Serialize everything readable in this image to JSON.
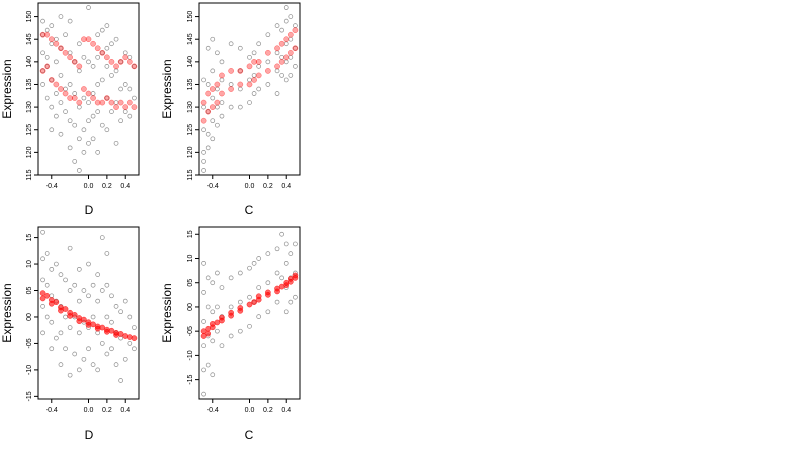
{
  "colors": {
    "background": "#ffffff",
    "observed_points": "#000000",
    "fitted_points": "#ff0000",
    "axis": "#000000"
  },
  "chart_data": [
    {
      "type": "scatter",
      "title": "",
      "xlabel": "D",
      "ylabel": "Expression",
      "xlim": [
        -0.55,
        0.55
      ],
      "ylim": [
        11.5,
        15.3
      ],
      "xticks": [
        -0.4,
        0.0,
        0.2,
        0.4
      ],
      "xtick_labels": [
        "-0.4",
        "0.0",
        "0.2",
        "0.4"
      ],
      "yticks": [
        11.5,
        12.0,
        12.5,
        13.0,
        13.5,
        14.0,
        14.5,
        15.0
      ],
      "ytick_labels": [
        "115",
        "120",
        "125",
        "130",
        "135",
        "140",
        "145",
        "150"
      ],
      "grid": false,
      "series": [
        {
          "role": "observed",
          "marker": "open-circle",
          "color": "#000000",
          "opacity": 0.45,
          "x": [
            -0.5,
            -0.5,
            -0.5,
            -0.5,
            -0.5,
            -0.45,
            -0.45,
            -0.45,
            -0.45,
            -0.4,
            -0.4,
            -0.4,
            -0.4,
            -0.4,
            -0.35,
            -0.35,
            -0.35,
            -0.35,
            -0.3,
            -0.3,
            -0.3,
            -0.3,
            -0.3,
            -0.25,
            -0.25,
            -0.25,
            -0.2,
            -0.2,
            -0.2,
            -0.2,
            -0.2,
            -0.15,
            -0.15,
            -0.15,
            -0.15,
            -0.1,
            -0.1,
            -0.1,
            -0.1,
            -0.1,
            -0.05,
            -0.05,
            -0.05,
            -0.05,
            0.0,
            0.0,
            0.0,
            0.0,
            0.0,
            0.05,
            0.05,
            0.05,
            0.05,
            0.1,
            0.1,
            0.1,
            0.1,
            0.1,
            0.15,
            0.15,
            0.15,
            0.15,
            0.2,
            0.2,
            0.2,
            0.2,
            0.2,
            0.25,
            0.25,
            0.25,
            0.3,
            0.3,
            0.3,
            0.3,
            0.35,
            0.35,
            0.35,
            0.4,
            0.4,
            0.4,
            0.45,
            0.45,
            0.45,
            0.5,
            0.5
          ],
          "y": [
            14.9,
            14.6,
            14.2,
            13.8,
            13.5,
            14.7,
            14.1,
            13.9,
            13.2,
            14.8,
            14.4,
            13.6,
            13.0,
            12.5,
            14.5,
            14.0,
            13.3,
            12.8,
            15.0,
            14.3,
            13.7,
            13.1,
            12.4,
            14.6,
            13.4,
            12.9,
            14.9,
            14.2,
            13.5,
            12.7,
            12.1,
            14.0,
            13.3,
            12.6,
            11.8,
            14.4,
            13.8,
            13.0,
            12.3,
            11.6,
            14.1,
            13.2,
            12.5,
            12.0,
            15.2,
            14.0,
            13.1,
            12.7,
            12.2,
            13.9,
            13.3,
            12.8,
            12.3,
            14.6,
            14.1,
            13.5,
            12.9,
            12.0,
            14.7,
            14.2,
            13.6,
            12.6,
            14.8,
            14.3,
            13.9,
            13.2,
            12.5,
            14.4,
            13.7,
            12.9,
            14.5,
            13.8,
            13.1,
            12.2,
            14.0,
            13.4,
            12.7,
            14.2,
            13.5,
            12.9,
            14.1,
            13.4,
            12.8,
            13.9,
            13.2
          ]
        },
        {
          "role": "fitted",
          "marker": "circle",
          "color": "#ff0000",
          "opacity": 0.35,
          "x": [
            -0.5,
            -0.5,
            -0.45,
            -0.45,
            -0.4,
            -0.4,
            -0.35,
            -0.35,
            -0.3,
            -0.3,
            -0.25,
            -0.25,
            -0.2,
            -0.2,
            -0.15,
            -0.15,
            -0.1,
            -0.1,
            -0.05,
            -0.05,
            0.0,
            0.0,
            0.05,
            0.05,
            0.1,
            0.1,
            0.15,
            0.15,
            0.2,
            0.2,
            0.25,
            0.25,
            0.3,
            0.3,
            0.35,
            0.35,
            0.4,
            0.4,
            0.45,
            0.45,
            0.5,
            0.5
          ],
          "y": [
            14.6,
            13.8,
            14.6,
            13.9,
            14.5,
            13.6,
            14.4,
            13.5,
            14.3,
            13.4,
            14.2,
            13.3,
            14.1,
            13.2,
            14.0,
            13.2,
            13.9,
            13.1,
            14.5,
            13.4,
            14.5,
            13.3,
            14.4,
            13.2,
            14.3,
            13.1,
            14.2,
            13.1,
            14.1,
            13.2,
            14.0,
            13.1,
            13.9,
            13.0,
            14.0,
            13.1,
            14.1,
            13.0,
            14.0,
            13.1,
            13.9,
            13.0
          ]
        }
      ]
    },
    {
      "type": "scatter",
      "title": "",
      "xlabel": "C",
      "ylabel": "Expression",
      "xlim": [
        -0.55,
        0.55
      ],
      "ylim": [
        11.5,
        15.3
      ],
      "xticks": [
        -0.4,
        0.0,
        0.2,
        0.4
      ],
      "xtick_labels": [
        "-0.4",
        "0.0",
        "0.2",
        "0.4"
      ],
      "yticks": [
        11.5,
        12.0,
        12.5,
        13.0,
        13.5,
        14.0,
        14.5,
        15.0
      ],
      "ytick_labels": [
        "115",
        "120",
        "125",
        "130",
        "135",
        "140",
        "145",
        "150"
      ],
      "grid": false,
      "series": [
        {
          "role": "observed",
          "marker": "open-circle",
          "color": "#000000",
          "opacity": 0.45,
          "x": [
            -0.5,
            -0.5,
            -0.5,
            -0.5,
            -0.5,
            -0.5,
            -0.45,
            -0.45,
            -0.45,
            -0.45,
            -0.45,
            -0.4,
            -0.4,
            -0.4,
            -0.4,
            -0.4,
            -0.35,
            -0.35,
            -0.35,
            -0.35,
            -0.3,
            -0.3,
            -0.3,
            -0.3,
            -0.2,
            -0.2,
            -0.2,
            -0.1,
            -0.1,
            -0.1,
            -0.1,
            0.0,
            0.0,
            0.0,
            0.05,
            0.05,
            0.05,
            0.1,
            0.1,
            0.1,
            0.2,
            0.2,
            0.2,
            0.3,
            0.3,
            0.3,
            0.3,
            0.35,
            0.35,
            0.35,
            0.4,
            0.4,
            0.4,
            0.4,
            0.4,
            0.45,
            0.45,
            0.45,
            0.45,
            0.5,
            0.5,
            0.5
          ],
          "y": [
            13.6,
            13.0,
            12.5,
            12.0,
            11.8,
            11.6,
            14.3,
            13.5,
            12.9,
            12.4,
            12.1,
            14.5,
            13.8,
            13.2,
            12.7,
            12.3,
            14.2,
            13.4,
            13.0,
            12.6,
            14.0,
            13.6,
            13.1,
            12.8,
            14.4,
            13.5,
            13.0,
            14.3,
            13.8,
            13.4,
            13.0,
            14.1,
            13.6,
            13.1,
            14.2,
            13.7,
            13.3,
            14.4,
            13.9,
            13.4,
            14.6,
            14.0,
            13.5,
            14.8,
            14.2,
            13.8,
            13.3,
            14.7,
            14.1,
            13.7,
            15.2,
            14.9,
            14.4,
            14.0,
            13.6,
            15.0,
            14.5,
            14.1,
            13.7,
            14.8,
            14.3,
            13.9
          ]
        },
        {
          "role": "fitted",
          "marker": "circle",
          "color": "#ff0000",
          "opacity": 0.35,
          "x": [
            -0.5,
            -0.5,
            -0.45,
            -0.45,
            -0.4,
            -0.4,
            -0.35,
            -0.35,
            -0.3,
            -0.3,
            -0.2,
            -0.2,
            -0.1,
            -0.1,
            0.0,
            0.0,
            0.05,
            0.05,
            0.1,
            0.1,
            0.2,
            0.2,
            0.3,
            0.3,
            0.35,
            0.35,
            0.4,
            0.4,
            0.45,
            0.45,
            0.5,
            0.5
          ],
          "y": [
            13.1,
            12.7,
            13.3,
            12.9,
            13.4,
            13.0,
            13.5,
            13.1,
            13.7,
            13.3,
            13.8,
            13.4,
            13.8,
            13.5,
            13.9,
            13.5,
            14.0,
            13.6,
            14.0,
            13.7,
            14.2,
            13.8,
            14.3,
            13.9,
            14.4,
            14.0,
            14.5,
            14.1,
            14.6,
            14.2,
            14.7,
            14.3
          ]
        }
      ]
    },
    {
      "type": "scatter",
      "title": "",
      "xlabel": "D",
      "ylabel": "Expression",
      "xlim": [
        -0.55,
        0.55
      ],
      "ylim": [
        -1.55,
        1.7
      ],
      "xticks": [
        -0.4,
        0.0,
        0.2,
        0.4
      ],
      "xtick_labels": [
        "-0.4",
        "0.0",
        "0.2",
        "0.4"
      ],
      "yticks": [
        -1.5,
        -1.0,
        -0.5,
        0.0,
        0.5,
        1.0,
        1.5
      ],
      "ytick_labels": [
        "-15",
        "-10",
        "-05",
        "00",
        "05",
        "10",
        "15"
      ],
      "grid": false,
      "series": [
        {
          "role": "observed",
          "marker": "open-circle",
          "color": "#000000",
          "opacity": 0.45,
          "x": [
            -0.5,
            -0.5,
            -0.5,
            -0.5,
            -0.5,
            -0.45,
            -0.45,
            -0.45,
            -0.4,
            -0.4,
            -0.4,
            -0.4,
            -0.35,
            -0.35,
            -0.35,
            -0.3,
            -0.3,
            -0.3,
            -0.3,
            -0.25,
            -0.25,
            -0.25,
            -0.2,
            -0.2,
            -0.2,
            -0.2,
            -0.15,
            -0.15,
            -0.15,
            -0.1,
            -0.1,
            -0.1,
            -0.1,
            -0.05,
            -0.05,
            -0.05,
            0.0,
            0.0,
            0.0,
            0.0,
            0.05,
            0.05,
            0.05,
            0.1,
            0.1,
            0.1,
            0.1,
            0.15,
            0.15,
            0.15,
            0.2,
            0.2,
            0.2,
            0.2,
            0.25,
            0.25,
            0.25,
            0.3,
            0.3,
            0.3,
            0.35,
            0.35,
            0.35,
            0.4,
            0.4,
            0.45,
            0.45,
            0.5,
            0.5
          ],
          "y": [
            1.6,
            1.1,
            0.7,
            0.2,
            -0.3,
            1.2,
            0.6,
            0.0,
            0.9,
            0.4,
            -0.1,
            -0.6,
            1.0,
            0.3,
            -0.4,
            0.8,
            0.2,
            -0.3,
            -0.9,
            0.7,
            0.0,
            -0.6,
            1.3,
            0.5,
            -0.2,
            -1.1,
            0.6,
            0.0,
            -0.7,
            0.9,
            0.3,
            -0.3,
            -1.0,
            0.5,
            -0.1,
            -0.8,
            1.0,
            0.4,
            -0.2,
            -0.6,
            0.6,
            0.0,
            -0.9,
            0.8,
            0.3,
            -0.3,
            -1.0,
            1.5,
            0.5,
            -0.5,
            1.2,
            0.6,
            0.0,
            -0.7,
            0.4,
            -0.1,
            -0.6,
            0.2,
            -0.3,
            -0.9,
            0.1,
            -0.4,
            -1.2,
            0.3,
            -0.8,
            0.0,
            -0.5,
            -0.2,
            -0.6
          ]
        },
        {
          "role": "fitted",
          "marker": "circle",
          "color": "#ff0000",
          "opacity": 0.6,
          "x": [
            -0.5,
            -0.5,
            -0.45,
            -0.4,
            -0.4,
            -0.35,
            -0.3,
            -0.3,
            -0.25,
            -0.2,
            -0.2,
            -0.15,
            -0.1,
            -0.1,
            -0.05,
            0.0,
            0.0,
            0.05,
            0.1,
            0.1,
            0.15,
            0.2,
            0.2,
            0.25,
            0.3,
            0.3,
            0.35,
            0.4,
            0.45,
            0.5
          ],
          "y": [
            0.45,
            0.35,
            0.4,
            0.32,
            0.25,
            0.28,
            0.18,
            0.12,
            0.15,
            0.08,
            0.02,
            0.04,
            -0.02,
            -0.08,
            -0.05,
            -0.1,
            -0.15,
            -0.14,
            -0.18,
            -0.22,
            -0.2,
            -0.24,
            -0.28,
            -0.26,
            -0.3,
            -0.34,
            -0.32,
            -0.36,
            -0.38,
            -0.4
          ]
        }
      ]
    },
    {
      "type": "scatter",
      "title": "",
      "xlabel": "C",
      "ylabel": "Expression",
      "xlim": [
        -0.55,
        0.55
      ],
      "ylim": [
        -1.9,
        1.65
      ],
      "xticks": [
        -0.4,
        0.0,
        0.2,
        0.4
      ],
      "xtick_labels": [
        "-0.4",
        "0.0",
        "0.2",
        "0.4"
      ],
      "yticks": [
        -1.5,
        -1.0,
        -0.5,
        0.0,
        0.5,
        1.0,
        1.5
      ],
      "ytick_labels": [
        "-15",
        "-10",
        "-05",
        "00",
        "05",
        "10",
        "15"
      ],
      "grid": false,
      "series": [
        {
          "role": "observed",
          "marker": "open-circle",
          "color": "#000000",
          "opacity": 0.45,
          "x": [
            -0.5,
            -0.5,
            -0.5,
            -0.5,
            -0.5,
            -0.5,
            -0.45,
            -0.45,
            -0.45,
            -0.45,
            -0.4,
            -0.4,
            -0.4,
            -0.4,
            -0.35,
            -0.35,
            -0.35,
            -0.3,
            -0.3,
            -0.3,
            -0.2,
            -0.2,
            -0.2,
            -0.1,
            -0.1,
            -0.1,
            0.0,
            0.0,
            0.0,
            0.05,
            0.05,
            0.1,
            0.1,
            0.1,
            0.2,
            0.2,
            0.2,
            0.3,
            0.3,
            0.3,
            0.35,
            0.35,
            0.4,
            0.4,
            0.4,
            0.4,
            0.45,
            0.45,
            0.45,
            0.5,
            0.5,
            0.5
          ],
          "y": [
            0.9,
            0.3,
            -0.3,
            -0.8,
            -1.3,
            -1.8,
            0.6,
            0.0,
            -0.6,
            -1.2,
            0.5,
            -0.1,
            -0.7,
            -1.4,
            0.7,
            0.0,
            -0.5,
            0.4,
            -0.2,
            -0.8,
            0.6,
            0.0,
            -0.6,
            0.7,
            0.1,
            -0.5,
            0.8,
            0.2,
            -0.4,
            0.9,
            0.1,
            1.0,
            0.4,
            -0.2,
            1.1,
            0.5,
            -0.1,
            1.2,
            0.7,
            0.1,
            1.5,
            0.6,
            1.3,
            0.9,
            0.4,
            -0.1,
            1.1,
            0.6,
            0.1,
            1.3,
            0.7,
            0.2
          ]
        },
        {
          "role": "fitted",
          "marker": "circle",
          "color": "#ff0000",
          "opacity": 0.6,
          "x": [
            -0.5,
            -0.5,
            -0.45,
            -0.45,
            -0.4,
            -0.4,
            -0.35,
            -0.3,
            -0.3,
            -0.2,
            -0.2,
            -0.1,
            -0.1,
            0.0,
            0.05,
            0.1,
            0.1,
            0.2,
            0.2,
            0.3,
            0.3,
            0.35,
            0.4,
            0.4,
            0.45,
            0.45,
            0.5,
            0.5
          ],
          "y": [
            -0.6,
            -0.5,
            -0.55,
            -0.45,
            -0.42,
            -0.35,
            -0.32,
            -0.28,
            -0.22,
            -0.18,
            -0.12,
            -0.08,
            -0.02,
            0.05,
            0.1,
            0.15,
            0.22,
            0.25,
            0.3,
            0.32,
            0.38,
            0.42,
            0.45,
            0.5,
            0.52,
            0.58,
            0.6,
            0.65
          ]
        }
      ]
    }
  ]
}
